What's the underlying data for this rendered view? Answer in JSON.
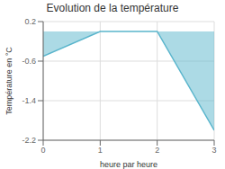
{
  "chart_data": {
    "type": "area",
    "title": "Evolution de la température",
    "xlabel": "heure par heure",
    "ylabel": "Température en °C",
    "x": [
      0,
      1,
      2,
      3
    ],
    "series": [
      {
        "name": "Température",
        "color": "#5ab5cc",
        "values": [
          -0.5,
          0.0,
          0.0,
          -2.0
        ]
      }
    ],
    "xlim": [
      0,
      3
    ],
    "xticks": [
      0,
      1,
      2,
      3
    ],
    "ylim": [
      -2.2,
      0.2
    ],
    "yticks": [
      0.2,
      -0.6,
      -1.4,
      -2.2
    ],
    "grid": true
  }
}
